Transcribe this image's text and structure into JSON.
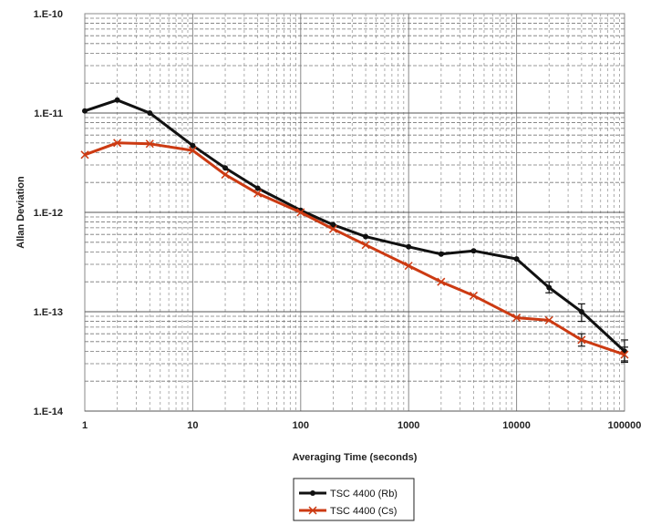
{
  "chart_data": {
    "type": "line",
    "title": "",
    "xlabel": "Averaging Time (seconds)",
    "ylabel": "Allan Deviation",
    "x_scale": "log",
    "y_scale": "log",
    "xlim": [
      1,
      100000
    ],
    "ylim": [
      1e-14,
      1e-10
    ],
    "x_tick_values": [
      1,
      10,
      100,
      1000,
      10000,
      100000
    ],
    "x_tick_labels": [
      "1",
      "10",
      "100",
      "1000",
      "10000",
      "100000"
    ],
    "y_tick_values": [
      1e-10,
      1e-11,
      1e-12,
      1e-13,
      1e-14
    ],
    "y_tick_labels": [
      "1.E-10",
      "1.E-11",
      "1.E-12",
      "1.E-13",
      "1.E-14"
    ],
    "grid": "major and minor (dashed)",
    "legend_position": "bottom-center",
    "series": [
      {
        "name": "TSC 4400 (Rb)",
        "color": "#111111",
        "marker": "circle",
        "x": [
          1,
          2,
          4,
          10,
          20,
          40,
          100,
          200,
          400,
          1000,
          2000,
          4000,
          10000,
          20000,
          40000,
          100000
        ],
        "y": [
          1.05e-11,
          1.35e-11,
          1e-11,
          4.7e-12,
          2.8e-12,
          1.75e-12,
          1.05e-12,
          7.5e-13,
          5.7e-13,
          4.5e-13,
          3.8e-13,
          4.1e-13,
          3.4e-13,
          1.75e-13,
          1e-13,
          4e-14
        ],
        "error_x": [
          20000,
          40000,
          100000
        ],
        "error_lo": [
          1.55e-13,
          8e-14,
          3.2e-14
        ],
        "error_hi": [
          2e-13,
          1.2e-13,
          5.2e-14
        ]
      },
      {
        "name": "TSC 4400 (Cs)",
        "color": "#cc3a12",
        "marker": "x",
        "x": [
          1,
          2,
          4,
          10,
          20,
          40,
          100,
          200,
          400,
          1000,
          2000,
          4000,
          10000,
          20000,
          40000,
          100000
        ],
        "y": [
          3.8e-12,
          5e-12,
          4.9e-12,
          4.2e-12,
          2.4e-12,
          1.55e-12,
          1e-12,
          6.8e-13,
          4.7e-13,
          2.9e-13,
          2e-13,
          1.45e-13,
          8.7e-14,
          8.2e-14,
          5.2e-14,
          3.7e-14
        ],
        "error_x": [
          40000,
          100000
        ],
        "error_lo": [
          4.5e-14,
          3.1e-14
        ],
        "error_hi": [
          6e-14,
          4.4e-14
        ]
      }
    ]
  }
}
